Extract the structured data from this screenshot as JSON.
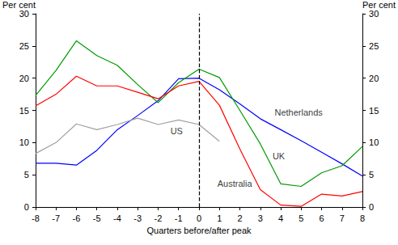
{
  "chart_data": {
    "type": "line",
    "x_label": "Quarters before/after peak",
    "y_label": "Per cent",
    "y2_label": "Per cent",
    "x": [
      -8,
      -7,
      -6,
      -5,
      -4,
      -3,
      -2,
      -1,
      0,
      1,
      2,
      3,
      4,
      5,
      6,
      7,
      8
    ],
    "xlim": [
      -8,
      8
    ],
    "xticks": [
      -8,
      -7,
      -6,
      -5,
      -4,
      -3,
      -2,
      -1,
      0,
      1,
      2,
      3,
      4,
      5,
      6,
      7,
      8
    ],
    "ylim": [
      0,
      30
    ],
    "yticks": [
      0,
      5,
      10,
      15,
      20,
      25,
      30
    ],
    "y2lim": [
      0,
      30
    ],
    "y2ticks": [
      0,
      5,
      10,
      15,
      20,
      25,
      30
    ],
    "grid": false,
    "series": [
      {
        "name": "Netherlands",
        "color": "#0000ff",
        "values": [
          6.8,
          6.8,
          6.5,
          8.8,
          12,
          14.2,
          16.5,
          19.9,
          20,
          18.2,
          16,
          13.7,
          12,
          10.3,
          8.5,
          6.7,
          4.8
        ]
      },
      {
        "name": "UK",
        "color": "#009900",
        "values": [
          17.3,
          21.2,
          25.8,
          23.5,
          22,
          19,
          16.2,
          19.3,
          21.4,
          20.1,
          15,
          9.8,
          3.6,
          3.2,
          5.3,
          6.4,
          9.4
        ]
      },
      {
        "name": "US",
        "color": "#a0a0a0",
        "values": [
          8.3,
          10,
          12.9,
          12,
          12.8,
          13.8,
          12.8,
          13.5,
          12.8,
          10.2,
          null,
          null,
          null,
          null,
          null,
          null,
          null
        ]
      },
      {
        "name": "Australia",
        "color": "#ff0000",
        "values": [
          15.7,
          17.5,
          20.3,
          18.8,
          18.8,
          17.8,
          16.8,
          18.8,
          19.5,
          15.8,
          9,
          2.7,
          0.3,
          0.1,
          2.0,
          1.7,
          2.4
        ]
      }
    ],
    "annotations": [
      {
        "text": "Netherlands",
        "x": 3.7,
        "y": 14.7
      },
      {
        "text": "UK",
        "x": 3.6,
        "y": 7.9
      },
      {
        "text": "US",
        "x": -1.4,
        "y": 11.8
      },
      {
        "text": "Australia",
        "x": 0.9,
        "y": 3.6
      }
    ],
    "reference_line": {
      "x": 0,
      "line_style": "dashed"
    }
  }
}
